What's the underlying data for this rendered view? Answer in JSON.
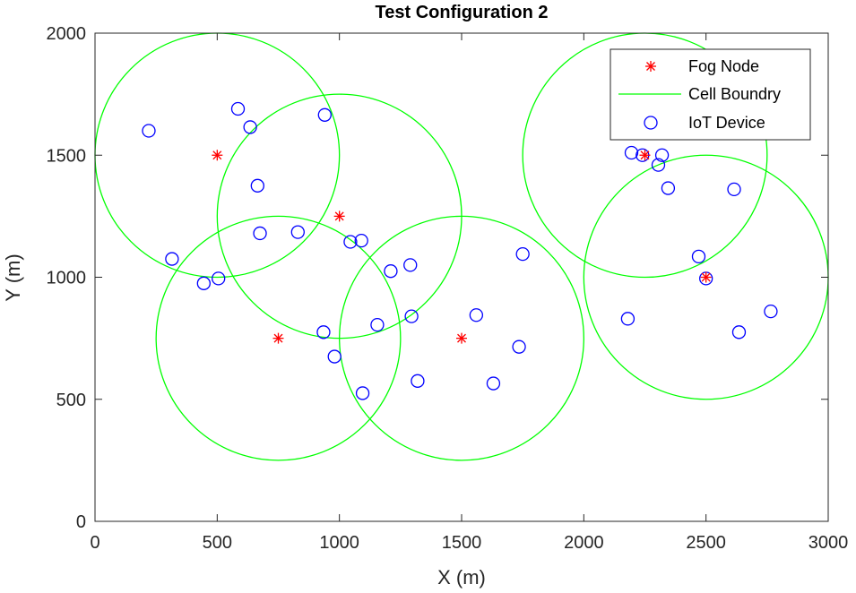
{
  "chart_data": {
    "type": "scatter",
    "title": "Test Configuration 2",
    "xlabel": "X (m)",
    "ylabel": "Y (m)",
    "xlim": [
      0,
      3000
    ],
    "ylim": [
      0,
      2000
    ],
    "xticks": [
      0,
      500,
      1000,
      1500,
      2000,
      2500,
      3000
    ],
    "yticks": [
      0,
      500,
      1000,
      1500,
      2000
    ],
    "cell_radius": 500,
    "legend": {
      "location": "top-right",
      "entries": [
        "Fog Node",
        "Cell Boundry",
        "IoT Device"
      ]
    },
    "colors": {
      "fog_node": "#ff0000",
      "cell_boundary": "#00ff00",
      "iot_device": "#0000ff"
    },
    "fog_nodes": [
      {
        "x": 500,
        "y": 1500
      },
      {
        "x": 1000,
        "y": 1250
      },
      {
        "x": 750,
        "y": 750
      },
      {
        "x": 1500,
        "y": 750
      },
      {
        "x": 2250,
        "y": 1500
      },
      {
        "x": 2500,
        "y": 1000
      }
    ],
    "iot_devices": [
      {
        "x": 220,
        "y": 1600
      },
      {
        "x": 585,
        "y": 1690
      },
      {
        "x": 635,
        "y": 1615
      },
      {
        "x": 940,
        "y": 1665
      },
      {
        "x": 665,
        "y": 1375
      },
      {
        "x": 675,
        "y": 1180
      },
      {
        "x": 830,
        "y": 1185
      },
      {
        "x": 315,
        "y": 1075
      },
      {
        "x": 445,
        "y": 975
      },
      {
        "x": 505,
        "y": 995
      },
      {
        "x": 1045,
        "y": 1145
      },
      {
        "x": 1090,
        "y": 1150
      },
      {
        "x": 1210,
        "y": 1025
      },
      {
        "x": 1290,
        "y": 1050
      },
      {
        "x": 1295,
        "y": 840
      },
      {
        "x": 1155,
        "y": 805
      },
      {
        "x": 935,
        "y": 775
      },
      {
        "x": 980,
        "y": 675
      },
      {
        "x": 1095,
        "y": 525
      },
      {
        "x": 1320,
        "y": 575
      },
      {
        "x": 1560,
        "y": 845
      },
      {
        "x": 1750,
        "y": 1095
      },
      {
        "x": 1735,
        "y": 715
      },
      {
        "x": 1630,
        "y": 565
      },
      {
        "x": 2195,
        "y": 1510
      },
      {
        "x": 2240,
        "y": 1500
      },
      {
        "x": 2320,
        "y": 1500
      },
      {
        "x": 2305,
        "y": 1460
      },
      {
        "x": 2345,
        "y": 1365
      },
      {
        "x": 2615,
        "y": 1360
      },
      {
        "x": 2470,
        "y": 1085
      },
      {
        "x": 2500,
        "y": 995
      },
      {
        "x": 2180,
        "y": 830
      },
      {
        "x": 2635,
        "y": 775
      },
      {
        "x": 2765,
        "y": 860
      }
    ]
  }
}
